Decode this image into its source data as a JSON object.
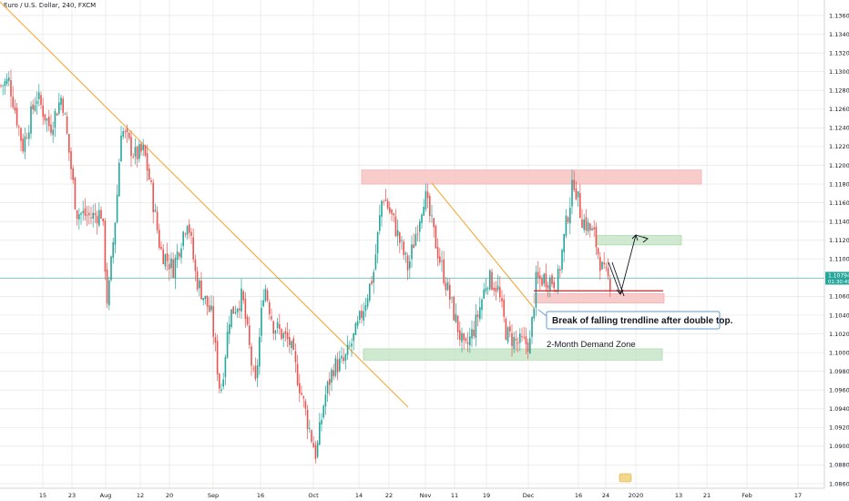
{
  "header": {
    "title": "Euro / U.S. Dollar, 240, FXCM"
  },
  "chart_data": {
    "type": "candlestick",
    "title": "Euro / U.S. Dollar, 240, FXCM",
    "ylim": [
      1.0837,
      1.1384
    ],
    "yticks": [
      "1.13600",
      "1.13400",
      "1.13200",
      "1.13000",
      "1.12800",
      "1.12600",
      "1.12400",
      "1.12200",
      "1.12000",
      "1.11800",
      "1.11600",
      "1.11400",
      "1.11200",
      "1.11000",
      "1.10800",
      "1.10600",
      "1.10400",
      "1.10200",
      "1.10000",
      "1.09800",
      "1.09600",
      "1.09400",
      "1.09200",
      "1.09000",
      "1.08800",
      "1.08600"
    ],
    "xticks": [
      "15",
      "23",
      "Aug",
      "12",
      "20",
      "Sep",
      "16",
      "Oct",
      "14",
      "22",
      "Nov",
      "11",
      "19",
      "Dec",
      "16",
      "24",
      "2020",
      "13",
      "21",
      "Feb",
      "17"
    ],
    "last_price": "1.10794",
    "countdown": "01:30:49",
    "colors": {
      "up": "#26a69a",
      "down": "#ef5350",
      "trendline": "#f6a93b",
      "supply_zone": "#f8c4c4",
      "demand_zone": "#c8e6c9",
      "grid": "#e6e6e6"
    },
    "annotations": {
      "callout": "Break of falling trendline after double top.",
      "demand_zone_label": "2-Month Demand Zone"
    },
    "levels": {
      "top_supply": [
        1.118,
        1.1195
      ],
      "target_zone": [
        1.1115,
        1.1125
      ],
      "lower_supply": [
        1.1053,
        1.1063
      ],
      "demand": [
        1.0992,
        1.1004
      ],
      "red_line": 1.1066
    }
  }
}
